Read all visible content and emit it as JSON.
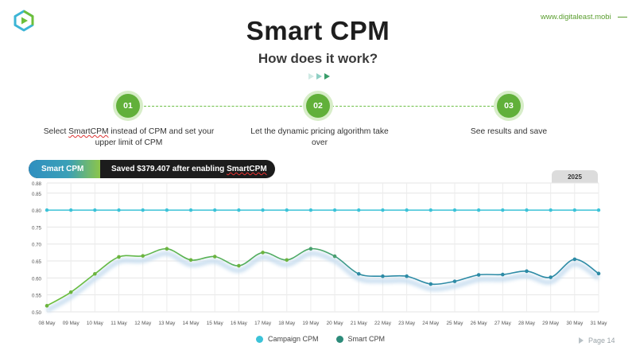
{
  "brand": {
    "logo_icon": "play-logo-icon",
    "colors": {
      "green": "#61b03a",
      "teal": "#2d8ba6",
      "light_blue": "#3cc3d8"
    }
  },
  "header": {
    "site_url": "www.digitaleast.mobi"
  },
  "title": "Smart CPM",
  "subtitle": "How does it work?",
  "steps": [
    {
      "number": "01",
      "text_parts": [
        "Select ",
        "SmartCPM",
        " instead of CPM and set your upper limit of CPM"
      ]
    },
    {
      "number": "02",
      "text": "Let the dynamic pricing algorithm take over"
    },
    {
      "number": "03",
      "text": "See results and save"
    }
  ],
  "pill": {
    "label": "Smart CPM",
    "message_prefix": "Saved $379.407 after enabling ",
    "message_highlight": "SmartCPM"
  },
  "year_tab": "2025",
  "page_label": "Page 14",
  "chart_data": {
    "type": "line",
    "title": "",
    "xlabel": "",
    "ylabel": "",
    "categories": [
      "08 May",
      "09 May",
      "10 May",
      "11 May",
      "12 May",
      "13 May",
      "14 May",
      "15 May",
      "16 May",
      "17 May",
      "18 May",
      "19 May",
      "20 May",
      "21 May",
      "22 May",
      "23 May",
      "24 May",
      "25 May",
      "26 May",
      "27 May",
      "28 May",
      "29 May",
      "30 May",
      "31 May"
    ],
    "ylim": [
      0.5,
      0.88
    ],
    "yticks": [
      0.5,
      0.55,
      0.6,
      0.65,
      0.7,
      0.75,
      0.8,
      0.85,
      0.88
    ],
    "ytick_labels": [
      "0.50",
      "0.55",
      "0.60",
      "0.65",
      "0.70",
      "0.75",
      "0.80",
      "0.85",
      "0.88"
    ],
    "grid": true,
    "legend_position": "bottom-center",
    "series": [
      {
        "name": "Campaign CPM",
        "color": "#3cc3d8",
        "values": [
          0.8,
          0.8,
          0.8,
          0.8,
          0.8,
          0.8,
          0.8,
          0.8,
          0.8,
          0.8,
          0.8,
          0.8,
          0.8,
          0.8,
          0.8,
          0.8,
          0.8,
          0.8,
          0.8,
          0.8,
          0.8,
          0.8,
          0.8,
          0.8
        ]
      },
      {
        "name": "Smart CPM",
        "color": "#2d8ba6",
        "color_start": "#6cbf3a",
        "values": [
          0.518,
          0.558,
          0.612,
          0.662,
          0.665,
          0.686,
          0.653,
          0.663,
          0.636,
          0.675,
          0.653,
          0.686,
          0.664,
          0.612,
          0.605,
          0.605,
          0.582,
          0.59,
          0.609,
          0.61,
          0.62,
          0.602,
          0.655,
          0.613
        ]
      }
    ]
  }
}
